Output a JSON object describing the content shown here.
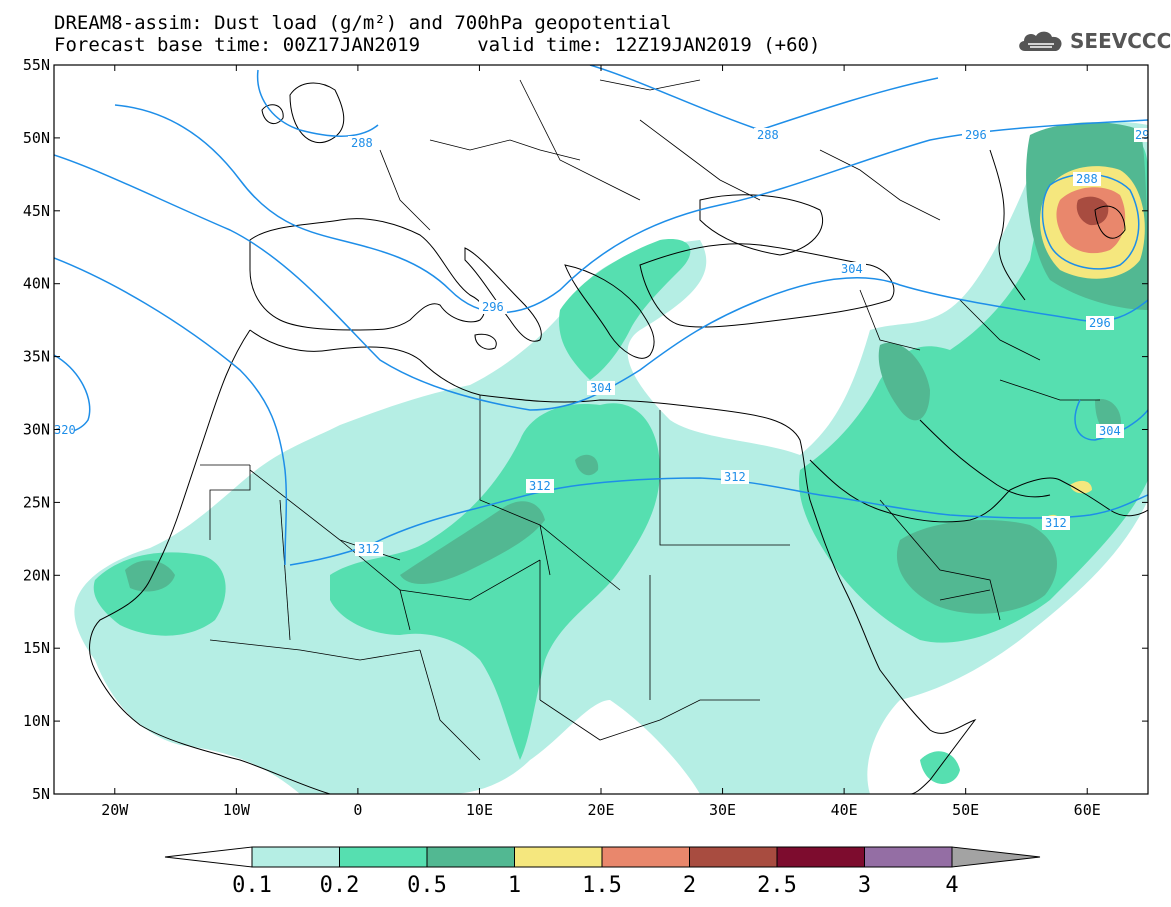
{
  "title": {
    "line1": "DREAM8-assim: Dust load (g/m²) and 700hPa geopotential",
    "line2": "Forecast base time: 00Z17JAN2019     valid time: 12Z19JAN2019 (+60)"
  },
  "logo": {
    "text": "SEEVCCC",
    "icon": "cloud-icon"
  },
  "map": {
    "lat_labels": [
      "55N",
      "50N",
      "45N",
      "40N",
      "35N",
      "30N",
      "25N",
      "20N",
      "15N",
      "10N",
      "5N"
    ],
    "lon_labels": [
      "20W",
      "10W",
      "0",
      "10E",
      "20E",
      "30E",
      "40E",
      "50E",
      "60E"
    ],
    "lon_range": [
      -25,
      65
    ],
    "lat_range": [
      5,
      55
    ],
    "geopotential_labels": [
      "288",
      "288",
      "296",
      "288",
      "296",
      "304",
      "296",
      "304",
      "304",
      "312",
      "312",
      "312",
      "320",
      "312",
      "29"
    ]
  },
  "colorbar": {
    "labels": [
      "0.1",
      "0.2",
      "0.5",
      "1",
      "1.5",
      "2",
      "2.5",
      "3",
      "4"
    ],
    "colors": [
      "#b5eee4",
      "#56dfb0",
      "#52b892",
      "#f5e77e",
      "#e9876c",
      "#a84c40",
      "#7d0c2e",
      "#946ea4",
      "#a3a3a3"
    ],
    "under_color": "#ffffff"
  },
  "colors": {
    "isoline": "#1e8ee8",
    "border": "#000000"
  }
}
